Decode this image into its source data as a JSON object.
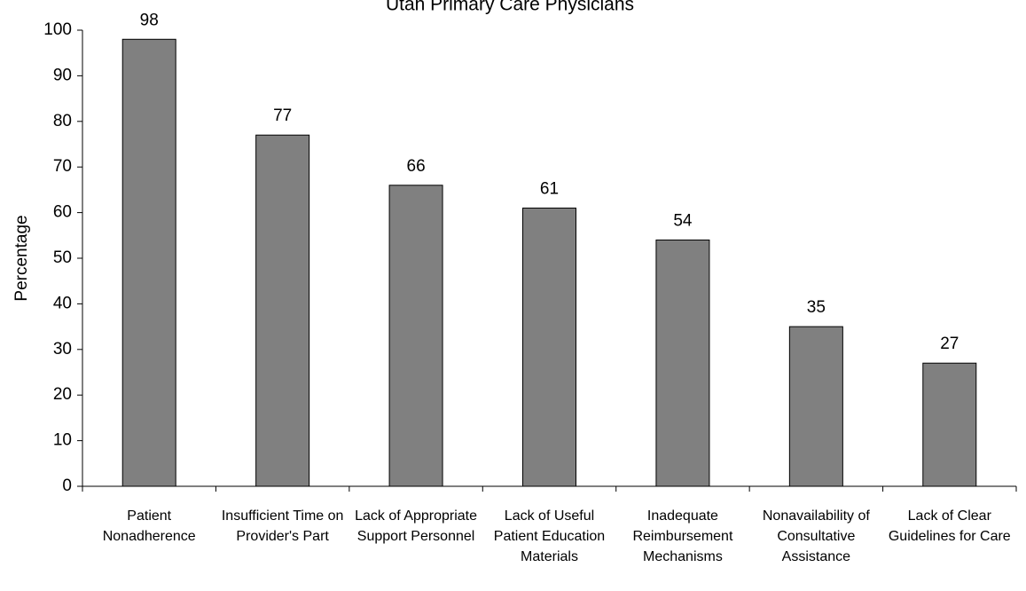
{
  "chart_data": {
    "type": "bar",
    "title": "Utah Primary Care Physicians",
    "ylabel": "Percentage",
    "categories": [
      "Patient Nonadherence",
      "Insufficient Time on Provider's Part",
      "Lack of Appropriate Support Personnel",
      "Lack of Useful Patient Education Materials",
      "Inadequate Reimbursement Mechanisms",
      "Nonavailability of Consultative Assistance",
      "Lack of Clear Guidelines for Care"
    ],
    "values": [
      98,
      77,
      66,
      61,
      54,
      35,
      27
    ],
    "color": "#808080",
    "ylim": [
      0,
      100
    ],
    "yticks": [
      0,
      10,
      20,
      30,
      40,
      50,
      60,
      70,
      80,
      90,
      100
    ],
    "grid": false
  }
}
